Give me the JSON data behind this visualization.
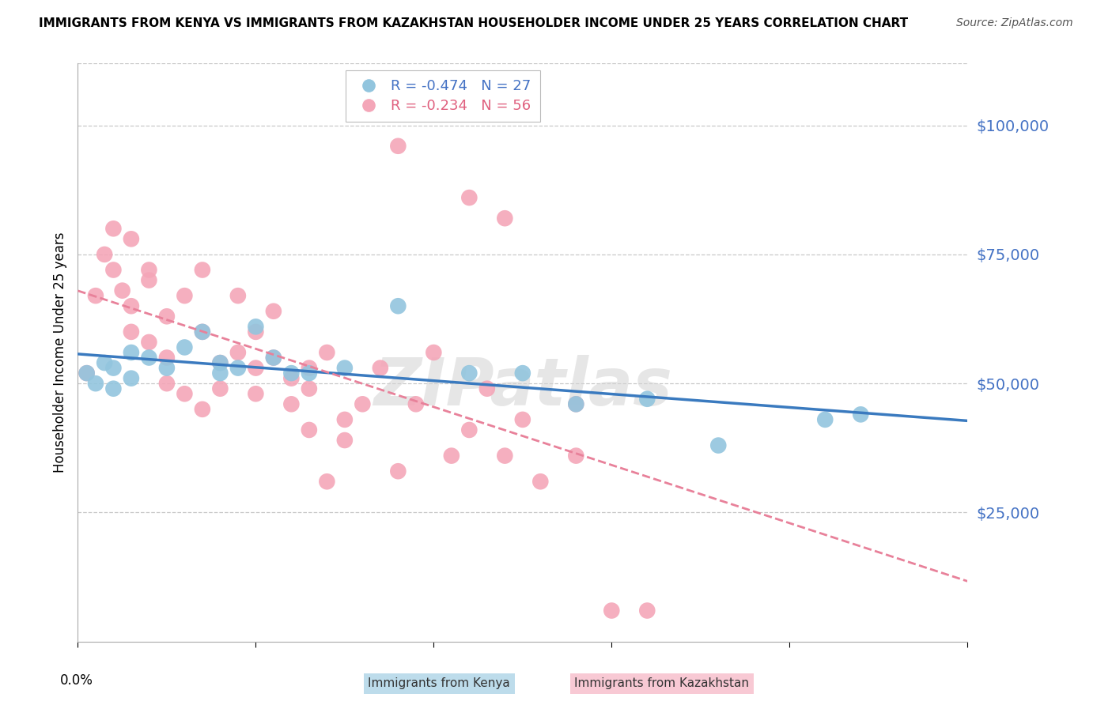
{
  "title": "IMMIGRANTS FROM KENYA VS IMMIGRANTS FROM KAZAKHSTAN HOUSEHOLDER INCOME UNDER 25 YEARS CORRELATION CHART",
  "source": "Source: ZipAtlas.com",
  "ylabel": "Householder Income Under 25 years",
  "xlim": [
    0.0,
    0.05
  ],
  "ylim": [
    0,
    112000
  ],
  "kenya_color": "#92c5de",
  "kazakhstan_color": "#f4a6b8",
  "kenya_R": -0.474,
  "kenya_N": 27,
  "kazakhstan_R": -0.234,
  "kazakhstan_N": 56,
  "kenya_x": [
    0.0005,
    0.001,
    0.0015,
    0.002,
    0.002,
    0.003,
    0.003,
    0.004,
    0.005,
    0.006,
    0.007,
    0.008,
    0.008,
    0.009,
    0.01,
    0.011,
    0.012,
    0.013,
    0.015,
    0.018,
    0.022,
    0.025,
    0.028,
    0.032,
    0.036,
    0.042,
    0.044
  ],
  "kenya_y": [
    52000,
    50000,
    54000,
    53000,
    49000,
    56000,
    51000,
    55000,
    53000,
    57000,
    60000,
    52000,
    54000,
    53000,
    61000,
    55000,
    52000,
    52000,
    53000,
    65000,
    52000,
    52000,
    46000,
    47000,
    38000,
    43000,
    44000
  ],
  "kazakhstan_x": [
    0.0005,
    0.001,
    0.0015,
    0.002,
    0.002,
    0.0025,
    0.003,
    0.003,
    0.003,
    0.004,
    0.004,
    0.004,
    0.005,
    0.005,
    0.005,
    0.006,
    0.006,
    0.007,
    0.007,
    0.007,
    0.008,
    0.008,
    0.009,
    0.009,
    0.01,
    0.01,
    0.01,
    0.011,
    0.011,
    0.012,
    0.012,
    0.013,
    0.013,
    0.013,
    0.014,
    0.014,
    0.015,
    0.015,
    0.016,
    0.017,
    0.018,
    0.019,
    0.02,
    0.021,
    0.022,
    0.023,
    0.024,
    0.025,
    0.026,
    0.028,
    0.03,
    0.032,
    0.018,
    0.022,
    0.024,
    0.028
  ],
  "kazakhstan_y": [
    52000,
    67000,
    75000,
    72000,
    80000,
    68000,
    78000,
    65000,
    60000,
    70000,
    72000,
    58000,
    63000,
    55000,
    50000,
    67000,
    48000,
    72000,
    60000,
    45000,
    54000,
    49000,
    67000,
    56000,
    60000,
    53000,
    48000,
    64000,
    55000,
    51000,
    46000,
    53000,
    41000,
    49000,
    56000,
    31000,
    43000,
    39000,
    46000,
    53000,
    33000,
    46000,
    56000,
    36000,
    41000,
    49000,
    36000,
    43000,
    31000,
    46000,
    6000,
    6000,
    96000,
    86000,
    82000,
    36000
  ],
  "watermark": "ZIPatlas",
  "background_color": "#ffffff",
  "grid_color": "#c8c8c8",
  "kenya_line_color": "#3a7abf",
  "kazakhstan_line_color": "#e8819a",
  "ytick_vals": [
    25000,
    50000,
    75000,
    100000
  ],
  "ytick_labels": [
    "$25,000",
    "$50,000",
    "$75,000",
    "$100,000"
  ],
  "xtick_vals": [
    0.0,
    0.01,
    0.02,
    0.03,
    0.04,
    0.05
  ],
  "xtick_label_left": "0.0%"
}
